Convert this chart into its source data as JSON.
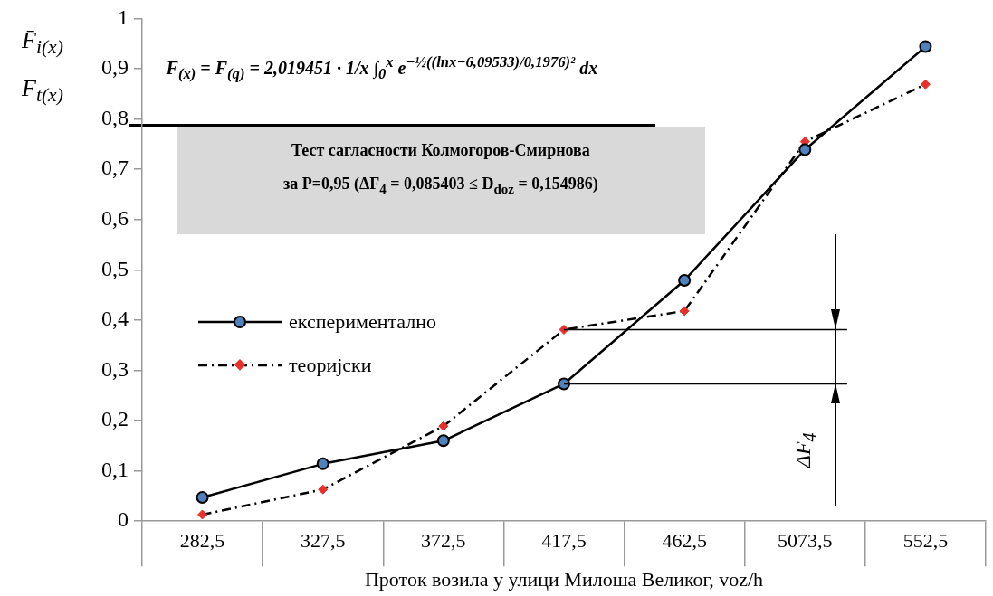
{
  "chart_data": {
    "type": "line",
    "xlabel": "Проток возила у улици Милоша Великог, voz/h",
    "ylabel": "F̄$_{i(x)}$\nF$_{t(x)}$",
    "categories": [
      "282,5",
      "327,5",
      "372,5",
      "417,5",
      "462,5",
      "5073,5",
      "552,5"
    ],
    "series": [
      {
        "name": "експериментално",
        "color": "#4f81bd",
        "marker": "circle",
        "line_style": "solid",
        "values": [
          0.047,
          0.114,
          0.16,
          0.273,
          0.479,
          0.739,
          0.944
        ]
      },
      {
        "name": "теоријски",
        "color": "#e8302a",
        "marker": "diamond",
        "line_style": "dashdot",
        "values": [
          0.013,
          0.063,
          0.189,
          0.381,
          0.418,
          0.755,
          0.869
        ]
      }
    ],
    "ylim": [
      0,
      1
    ],
    "yticks": [
      0,
      {
        "value": 0.1,
        "label": "0,1"
      },
      {
        "value": 0.2,
        "label": "0,2"
      },
      {
        "value": 0.3,
        "label": "0,3"
      },
      {
        "value": 0.4,
        "label": "0,4"
      },
      {
        "value": 0.5,
        "label": "0,5"
      },
      {
        "value": 0.6,
        "label": "0,6"
      },
      {
        "value": 0.7,
        "label": "0,7"
      },
      {
        "value": 0.8,
        "label": "0,8"
      },
      {
        "value": 0.9,
        "label": "0,9"
      },
      1
    ],
    "grid": false,
    "legend": "center left",
    "ref_lines": [
      {
        "axis": "y",
        "value": 0.381
      },
      {
        "axis": "y",
        "value": 0.273
      }
    ],
    "annotations": [
      "F$_{(x)}$ = F$_{(q)}$ = 2,019451 · 1/x ∫$_{0}$$^{x}$ e$^{−½((lnx−6,09533)/0,1976)²}$ dx",
      "Тест сагласности Колмогоров-Смирнова",
      "за P=0,95  (ΔF$_{4}$ = 0,085403 ≤ D$_{doz}$ = 0,154986)",
      "ΔF$_{4}$"
    ]
  }
}
